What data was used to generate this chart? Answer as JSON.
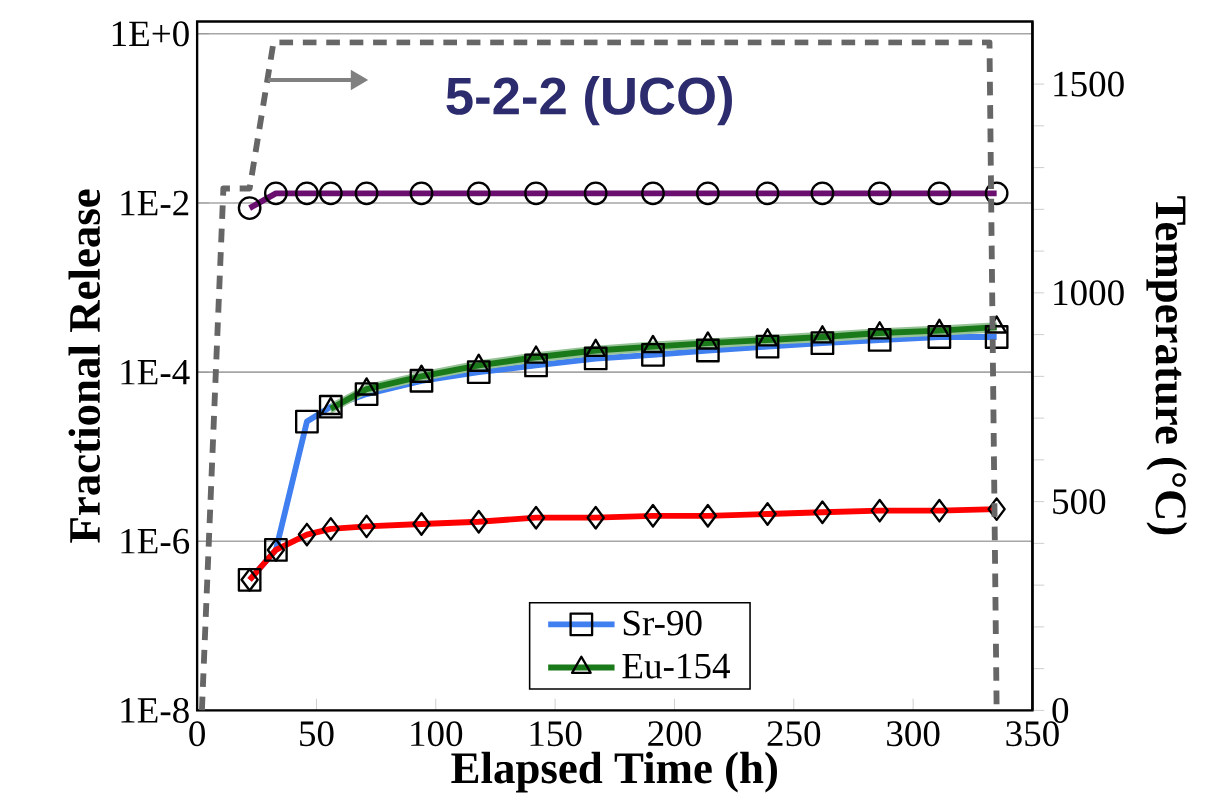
{
  "chart_data": {
    "type": "line",
    "xlabel": "Elapsed Time (h)",
    "ylabel": "Fractional Release",
    "y2label": "Temperature (°C)",
    "annotations": [
      "5-2-2 (UCO)"
    ],
    "log": "y",
    "grid": "y",
    "legend": "bottom",
    "xlim": [
      0,
      350
    ],
    "xticks": [
      0,
      50,
      100,
      150,
      200,
      250,
      300,
      350
    ],
    "ylim": [
      1e-08,
      1.4
    ],
    "yticks": [
      {
        "value": 1e-08,
        "label": "1E-8"
      },
      {
        "value": 1e-06,
        "label": "1E-6"
      },
      {
        "value": 0.0001,
        "label": "1E-4"
      },
      {
        "value": 0.01,
        "label": "1E-2"
      },
      {
        "value": 1,
        "label": "1E+0"
      }
    ],
    "y2lim": [
      0,
      1650
    ],
    "y2ticks": [
      0,
      500,
      1000,
      1500
    ],
    "x": [
      22,
      33,
      46,
      56,
      71,
      94,
      118,
      142,
      167,
      191,
      214,
      239,
      262,
      286,
      311,
      335
    ],
    "series": [
      {
        "name": "Sr-90",
        "color": "#3f7fef",
        "marker": "square",
        "values": [
          3.5e-07,
          7.9e-07,
          2.6e-05,
          3.9e-05,
          5.5e-05,
          7.9e-05,
          0.0001,
          0.00012,
          0.000145,
          0.00016,
          0.00018,
          0.0002,
          0.00022,
          0.00024,
          0.00026,
          0.00026
        ]
      },
      {
        "name": "Eu-154",
        "color": "#1a7a1a",
        "marker": "triangle",
        "values": [
          null,
          null,
          null,
          3.7e-05,
          6.3e-05,
          8.9e-05,
          0.00012,
          0.00015,
          0.00018,
          0.0002,
          0.00022,
          0.00024,
          0.00026,
          0.00029,
          0.00031,
          0.00034
        ],
        "lower": [
          null,
          null,
          null,
          3.2e-05,
          5.5e-05,
          7.8e-05,
          0.000105,
          0.00013,
          0.000155,
          0.000175,
          0.00019,
          0.00021,
          0.000225,
          0.00025,
          0.00027,
          0.000295
        ],
        "upper": [
          null,
          null,
          null,
          4.3e-05,
          7.2e-05,
          0.000102,
          0.000138,
          0.000172,
          0.000205,
          0.00023,
          0.00025,
          0.000275,
          0.0003,
          0.00033,
          0.000355,
          0.00039
        ]
      },
      {
        "color": "#ff0000",
        "marker": "diamond",
        "values": [
          3.5e-07,
          7.9e-07,
          1.2e-06,
          1.4e-06,
          1.5e-06,
          1.6e-06,
          1.7e-06,
          1.9e-06,
          1.9e-06,
          2e-06,
          2e-06,
          2.1e-06,
          2.2e-06,
          2.3e-06,
          2.3e-06,
          2.4e-06
        ]
      },
      {
        "color": "#6a0f6f",
        "marker": "circle",
        "values": [
          0.0087,
          0.013,
          0.013,
          0.013,
          0.013,
          0.013,
          0.013,
          0.013,
          0.013,
          0.013,
          0.013,
          0.013,
          0.013,
          0.013,
          0.013,
          0.013
        ]
      },
      {
        "color": "#666666",
        "marker": "none",
        "line_style": "dashed",
        "axis": "y2",
        "x": [
          2,
          11,
          22,
          32,
          332,
          335
        ],
        "values": [
          0,
          1250,
          1250,
          1600,
          1600,
          0
        ]
      }
    ]
  }
}
